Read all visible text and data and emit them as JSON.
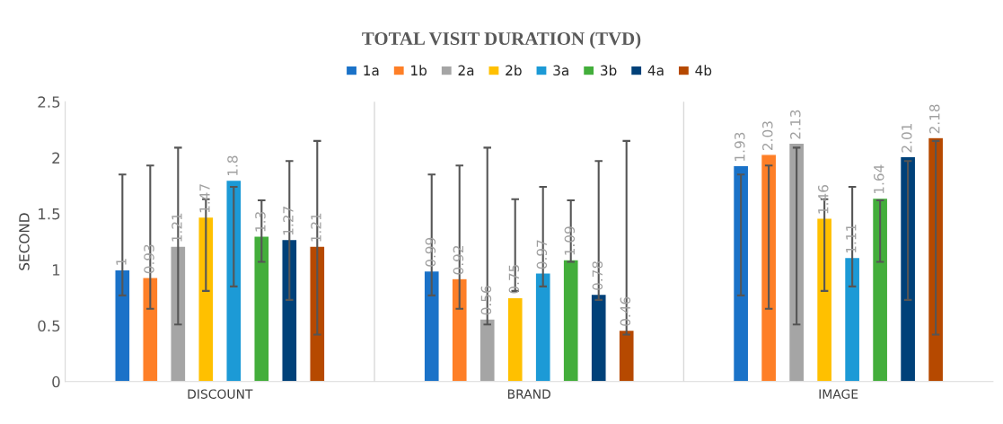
{
  "chart_data": {
    "type": "bar",
    "title": "TOTAL VISIT DURATION (TVD)",
    "ylabel": "SECOND",
    "categories": [
      "DISCOUNT",
      "BRAND",
      "IMAGE"
    ],
    "series": [
      {
        "name": "1a",
        "color": "#1a72c8",
        "values": [
          1,
          0.99,
          1.93
        ],
        "errors": [
          [
            0.77,
            1.85
          ],
          [
            0.77,
            1.85
          ],
          [
            0.77,
            1.85
          ]
        ]
      },
      {
        "name": "1b",
        "color": "#fe7f27",
        "values": [
          0.93,
          0.92,
          2.03
        ],
        "errors": [
          [
            0.65,
            1.93
          ],
          [
            0.65,
            1.93
          ],
          [
            0.65,
            1.93
          ]
        ]
      },
      {
        "name": "2a",
        "color": "#a5a5a5",
        "values": [
          1.21,
          0.56,
          2.13
        ],
        "errors": [
          [
            0.51,
            2.09
          ],
          [
            0.51,
            2.09
          ],
          [
            0.51,
            2.09
          ]
        ]
      },
      {
        "name": "2b",
        "color": "#ffc000",
        "values": [
          1.47,
          0.75,
          1.46
        ],
        "errors": [
          [
            0.81,
            1.63
          ],
          [
            0.81,
            1.63
          ],
          [
            0.81,
            1.63
          ]
        ]
      },
      {
        "name": "3a",
        "color": "#1c9ad6",
        "values": [
          1.8,
          0.97,
          1.11
        ],
        "errors": [
          [
            0.85,
            1.74
          ],
          [
            0.85,
            1.74
          ],
          [
            0.85,
            1.74
          ]
        ]
      },
      {
        "name": "3b",
        "color": "#43ae3b",
        "values": [
          1.3,
          1.09,
          1.64
        ],
        "errors": [
          [
            1.07,
            1.62
          ],
          [
            1.07,
            1.62
          ],
          [
            1.07,
            1.62
          ]
        ]
      },
      {
        "name": "4a",
        "color": "#004179",
        "values": [
          1.27,
          0.78,
          2.01
        ],
        "errors": [
          [
            0.73,
            1.97
          ],
          [
            0.73,
            1.97
          ],
          [
            0.73,
            1.97
          ]
        ]
      },
      {
        "name": "4b",
        "color": "#b64900",
        "values": [
          1.21,
          0.46,
          2.18
        ],
        "errors": [
          [
            0.42,
            2.15
          ],
          [
            0.42,
            2.15
          ],
          [
            0.42,
            2.15
          ]
        ]
      }
    ],
    "ylim": [
      0,
      2.5
    ],
    "yticks": [
      0,
      0.5,
      1,
      1.5,
      2,
      2.5
    ],
    "data_labels": true,
    "legend": "top",
    "grid": false
  }
}
